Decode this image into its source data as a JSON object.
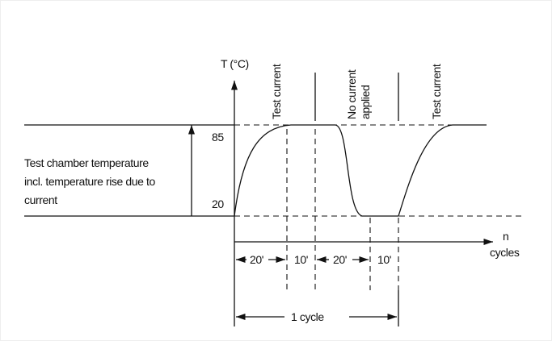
{
  "axes": {
    "y_label": "T (°C)",
    "y_values": [
      "85",
      "20"
    ],
    "x_label": [
      "n",
      "cycles"
    ]
  },
  "phases": [
    {
      "label": [
        "Test current"
      ]
    },
    {
      "label": [
        "No current",
        "applied"
      ]
    },
    {
      "label": [
        "Test current"
      ]
    }
  ],
  "left_note": [
    "Test chamber temperature",
    "incl. temperature rise due to",
    "current"
  ],
  "durations": [
    "20'",
    "10'",
    "20'",
    "10'"
  ],
  "cycle": "1 cycle"
}
